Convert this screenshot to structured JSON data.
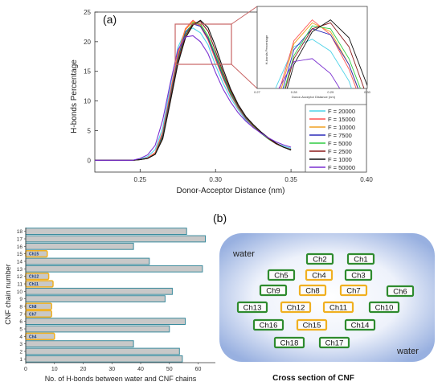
{
  "chart_data": [
    {
      "type": "line",
      "panel_label": "(a)",
      "xlabel": "Donor-Acceptor Distance (nm)",
      "ylabel": "H-bonds Percentage",
      "xlim": [
        0.22,
        0.4
      ],
      "ylim": [
        -2,
        25
      ],
      "x_ticks": [
        0.25,
        0.3,
        0.35,
        0.4
      ],
      "x_tick_labels": [
        "0.25",
        "0.30",
        "0.35",
        "0.40"
      ],
      "y_ticks": [
        0,
        5,
        10,
        15,
        20,
        25
      ],
      "y_tick_labels": [
        "0",
        "5",
        "10",
        "15",
        "20",
        "25"
      ],
      "legend_position": "lower-right",
      "x": [
        0.22,
        0.245,
        0.25,
        0.255,
        0.26,
        0.265,
        0.27,
        0.275,
        0.28,
        0.285,
        0.29,
        0.295,
        0.3,
        0.305,
        0.31,
        0.315,
        0.32,
        0.325,
        0.33,
        0.335,
        0.34,
        0.345,
        0.35
      ],
      "series": [
        {
          "name": "F = 20000",
          "color": "#4fd3e8",
          "values": [
            0,
            0,
            0.2,
            0.6,
            1.8,
            5.5,
            12.5,
            19.0,
            21.8,
            22.3,
            21.5,
            19.5,
            16.0,
            13.0,
            10.5,
            8.5,
            6.8,
            5.6,
            4.6,
            3.6,
            2.8,
            2.4,
            2.0
          ]
        },
        {
          "name": "F = 15000",
          "color": "#ff5050",
          "values": [
            0,
            0,
            0.1,
            0.4,
            1.3,
            4.8,
            11.5,
            18.0,
            22.2,
            23.6,
            22.6,
            20.3,
            17.0,
            13.8,
            11.0,
            8.8,
            7.0,
            5.7,
            4.6,
            3.6,
            2.8,
            2.2,
            1.8
          ]
        },
        {
          "name": "F = 10000",
          "color": "#f0a020",
          "values": [
            0,
            0,
            0.1,
            0.3,
            1.1,
            4.5,
            11.0,
            17.6,
            22.0,
            23.4,
            22.8,
            20.6,
            17.3,
            14.0,
            11.1,
            8.9,
            7.1,
            5.8,
            4.6,
            3.6,
            2.8,
            2.2,
            1.8
          ]
        },
        {
          "name": "F = 7500",
          "color": "#2a2ab8",
          "values": [
            0,
            0,
            0.1,
            0.3,
            1.0,
            4.3,
            10.8,
            17.2,
            21.6,
            23.0,
            22.6,
            20.6,
            17.4,
            14.1,
            11.2,
            9.0,
            7.1,
            5.8,
            4.6,
            3.6,
            2.8,
            2.2,
            1.8
          ]
        },
        {
          "name": "F = 5000",
          "color": "#2ecc40",
          "values": [
            0,
            0,
            0.1,
            0.3,
            1.0,
            4.0,
            10.4,
            16.8,
            21.2,
            23.2,
            23.0,
            21.0,
            17.8,
            14.4,
            11.4,
            9.1,
            7.2,
            5.8,
            4.6,
            3.6,
            2.8,
            2.2,
            1.8
          ]
        },
        {
          "name": "F = 2500",
          "color": "#8b1a1a",
          "values": [
            0,
            0,
            0.1,
            0.3,
            1.0,
            3.8,
            10.2,
            16.6,
            21.0,
            23.0,
            23.4,
            21.8,
            18.4,
            14.8,
            11.7,
            9.2,
            7.3,
            5.9,
            4.7,
            3.7,
            2.8,
            2.2,
            1.8
          ]
        },
        {
          "name": "F = 1000",
          "color": "#111111",
          "values": [
            0,
            0,
            0.1,
            0.3,
            1.0,
            3.6,
            9.8,
            16.2,
            20.6,
            22.8,
            23.6,
            22.4,
            19.2,
            15.4,
            12.0,
            9.4,
            7.4,
            6.0,
            4.8,
            3.8,
            2.9,
            2.2,
            1.7
          ]
        },
        {
          "name": "F = 50000",
          "color": "#7a2fd0",
          "values": [
            0,
            0,
            0.3,
            0.9,
            2.5,
            6.8,
            13.0,
            18.6,
            20.8,
            21.0,
            20.0,
            18.0,
            14.8,
            12.0,
            9.8,
            8.0,
            6.6,
            5.5,
            4.6,
            3.8,
            3.1,
            2.6,
            2.2
          ]
        }
      ],
      "inset": {
        "xlabel": "Donor-Acceptor Distance (nm)",
        "ylabel": "H-bonds Percentage",
        "xlim": [
          0.27,
          0.3
        ],
        "ylim": [
          19,
          24.5
        ],
        "x_tick_labels": [
          "0.27",
          "0.28",
          "0.29",
          "0.30"
        ]
      }
    },
    {
      "type": "bar",
      "orientation": "horizontal",
      "panel_label": "(b)",
      "xlabel": "No. of H-bonds between water and CNF chains",
      "ylabel": "CNF chain number",
      "xlim": [
        0,
        66
      ],
      "x_ticks": [
        0,
        10,
        20,
        30,
        40,
        50,
        60
      ],
      "x_tick_labels": [
        "0",
        "10",
        "20",
        "30",
        "40",
        "50",
        "60"
      ],
      "categories": [
        "1",
        "2",
        "3",
        "4",
        "5",
        "6",
        "7",
        "8",
        "9",
        "10",
        "11",
        "12",
        "13",
        "14",
        "15",
        "16",
        "17",
        "18"
      ],
      "values": [
        54.5,
        53.5,
        37.5,
        0,
        50,
        55.5,
        0,
        0,
        48.5,
        51,
        0,
        0,
        61.5,
        43,
        0,
        37.5,
        62.5,
        56
      ],
      "bar_color": "#c8c8c8",
      "bar_edge_color": "#3a8a9c",
      "highlight_labels": [
        {
          "chain": "4",
          "text": "Ch4",
          "value": 10
        },
        {
          "chain": "7",
          "text": "Ch7",
          "value": 9
        },
        {
          "chain": "8",
          "text": "Ch8",
          "value": 9
        },
        {
          "chain": "11",
          "text": "Ch11",
          "value": 9.5
        },
        {
          "chain": "12",
          "text": "Ch12",
          "value": 8
        },
        {
          "chain": "15",
          "text": "Ch15",
          "value": 7.5
        }
      ]
    }
  ],
  "cross_section": {
    "title": "Cross section of CNF",
    "water_top": "water",
    "water_bottom": "water",
    "chains": [
      {
        "label": "Ch2",
        "type": "surface"
      },
      {
        "label": "Ch1",
        "type": "surface"
      },
      {
        "label": "Ch5",
        "type": "surface"
      },
      {
        "label": "Ch4",
        "type": "core"
      },
      {
        "label": "Ch3",
        "type": "surface"
      },
      {
        "label": "Ch9",
        "type": "surface"
      },
      {
        "label": "Ch8",
        "type": "core"
      },
      {
        "label": "Ch7",
        "type": "core"
      },
      {
        "label": "Ch6",
        "type": "surface"
      },
      {
        "label": "Ch13",
        "type": "surface"
      },
      {
        "label": "Ch12",
        "type": "core"
      },
      {
        "label": "Ch11",
        "type": "core"
      },
      {
        "label": "Ch10",
        "type": "surface"
      },
      {
        "label": "Ch16",
        "type": "surface"
      },
      {
        "label": "Ch15",
        "type": "core"
      },
      {
        "label": "Ch14",
        "type": "surface"
      },
      {
        "label": "Ch18",
        "type": "surface"
      },
      {
        "label": "Ch17",
        "type": "surface"
      }
    ],
    "surface_color": "#2e8b2e",
    "core_color": "#f0b020"
  }
}
